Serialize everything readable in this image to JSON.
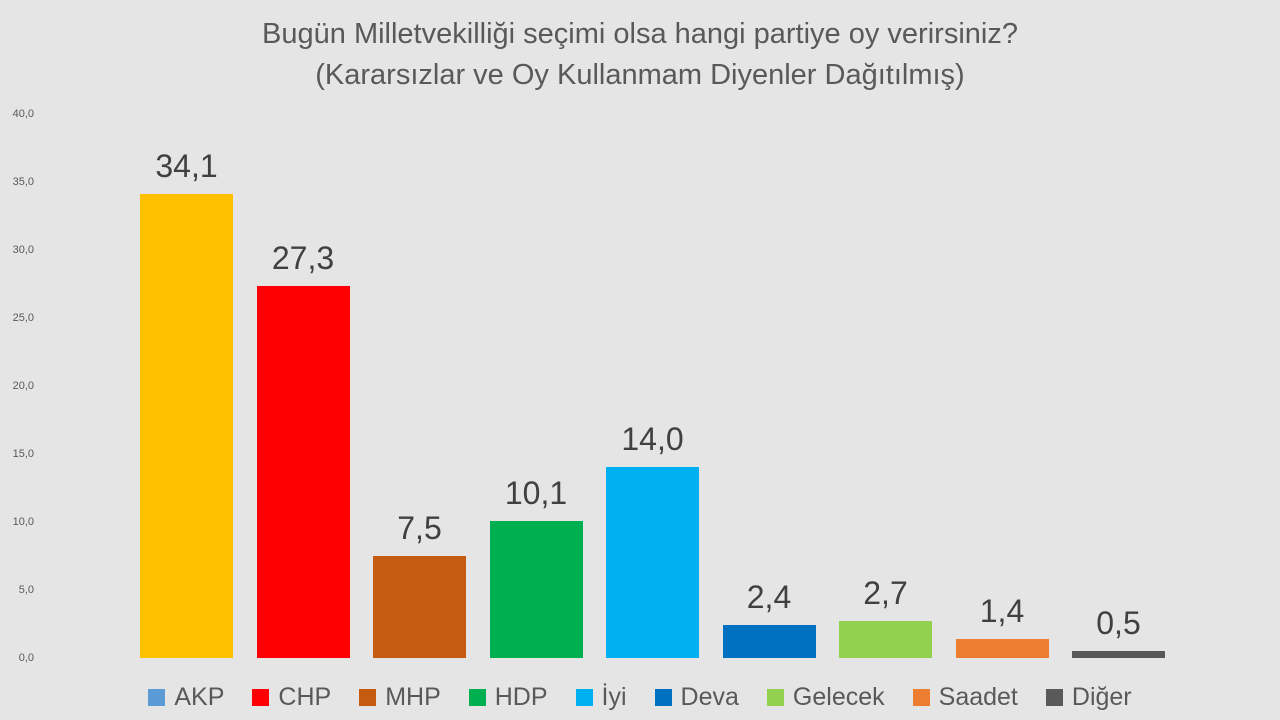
{
  "chart_data": {
    "type": "bar",
    "title_line1": "Bugün Milletvekilliği seçimi olsa hangi partiye oy verirsiniz?",
    "title_line2": "(Kararsızlar ve Oy Kullanmam Diyenler Dağıtılmış)",
    "categories": [
      "AKP",
      "CHP",
      "MHP",
      "HDP",
      "İyi",
      "Deva",
      "Gelecek",
      "Saadet",
      "Diğer"
    ],
    "values": [
      34.1,
      27.3,
      7.5,
      10.1,
      14.0,
      2.4,
      2.7,
      1.4,
      0.5
    ],
    "value_labels": [
      "34,1",
      "27,3",
      "7,5",
      "10,1",
      "14,0",
      "2,4",
      "2,7",
      "1,4",
      "0,5"
    ],
    "bar_colors": [
      "#FFC000",
      "#FE0000",
      "#C55A11",
      "#00B050",
      "#00B0F0",
      "#0070C0",
      "#92D050",
      "#ED7D31",
      "#595959"
    ],
    "legend": [
      {
        "label": "AKP",
        "color": "#5B9BD5"
      },
      {
        "label": "CHP",
        "color": "#FE0000"
      },
      {
        "label": "MHP",
        "color": "#C55A11"
      },
      {
        "label": "HDP",
        "color": "#00B050"
      },
      {
        "label": "İyi",
        "color": "#00B0F0"
      },
      {
        "label": "Deva",
        "color": "#0070C0"
      },
      {
        "label": "Gelecek",
        "color": "#92D050"
      },
      {
        "label": "Saadet",
        "color": "#ED7D31"
      },
      {
        "label": "Diğer",
        "color": "#595959"
      }
    ],
    "y_axis": {
      "min": 0,
      "max": 40,
      "step": 5,
      "tick_labels": [
        "0,0",
        "5,0",
        "10,0",
        "15,0",
        "20,0",
        "25,0",
        "30,0",
        "35,0",
        "40,0"
      ]
    },
    "ylim": [
      0,
      40
    ],
    "grid": false,
    "legend_position": "bottom",
    "colors": {
      "background": "#E6E5E5",
      "title_text": "#595959",
      "value_label_text": "#404040",
      "tick_text": "#595959",
      "legend_text": "#595959"
    }
  }
}
